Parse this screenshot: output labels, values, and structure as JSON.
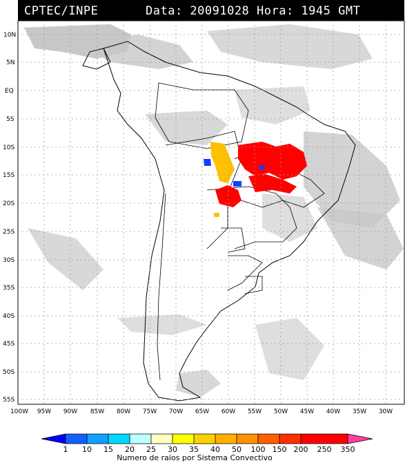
{
  "header": {
    "source": "CPTEC/INPE",
    "datetime": "Data: 20091028 Hora: 1945 GMT"
  },
  "map": {
    "lat_labels": [
      "10N",
      "5N",
      "EQ",
      "5S",
      "10S",
      "15S",
      "20S",
      "25S",
      "30S",
      "35S",
      "40S",
      "45S",
      "50S",
      "55S"
    ],
    "lon_labels": [
      "100W",
      "95W",
      "90W",
      "85W",
      "80W",
      "75W",
      "70W",
      "65W",
      "60W",
      "55W",
      "50W",
      "45W",
      "40W",
      "35W",
      "30W"
    ],
    "colors": {
      "cloud": "#c8c8c8",
      "border": "#000000",
      "grid": "#9a9a9a"
    }
  },
  "colorbar": {
    "ticks": [
      "1",
      "10",
      "15",
      "20",
      "25",
      "30",
      "35",
      "40",
      "50",
      "100",
      "150",
      "200",
      "250",
      "350"
    ],
    "colors": [
      "#0000ff",
      "#1060ff",
      "#10a0ff",
      "#00d8ff",
      "#c0ffff",
      "#ffffc0",
      "#ffff00",
      "#ffd000",
      "#ffb000",
      "#ff9000",
      "#ff6000",
      "#ff3000",
      "#ff0000",
      "#ff40a0"
    ],
    "caption": "Numero de raios por Sistema Convectivo"
  }
}
